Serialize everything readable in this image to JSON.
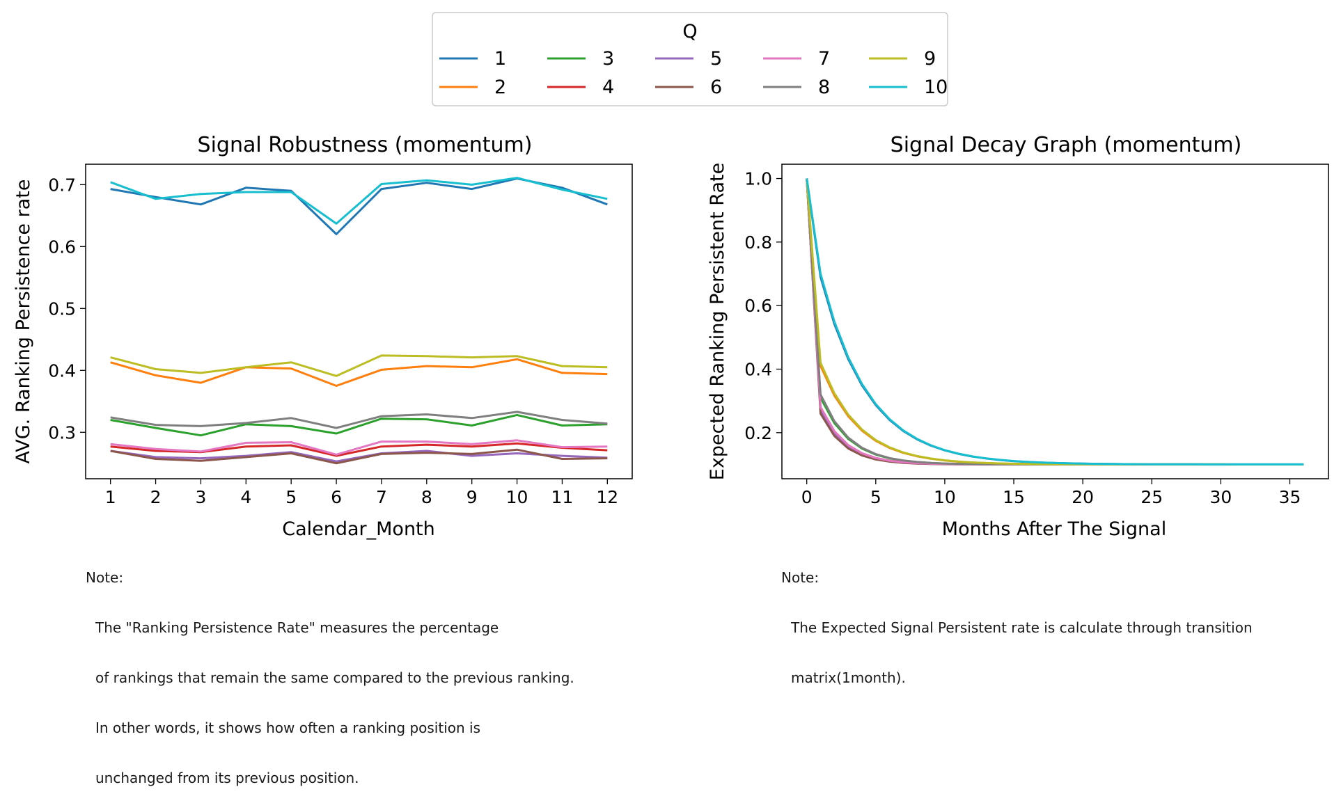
{
  "legend": {
    "title": "Q",
    "entries": [
      "1",
      "2",
      "3",
      "4",
      "5",
      "6",
      "7",
      "8",
      "9",
      "10"
    ]
  },
  "colors": [
    "#1f77b4",
    "#ff7f0e",
    "#2ca02c",
    "#d62728",
    "#9467bd",
    "#8c564b",
    "#e377c2",
    "#7f7f7f",
    "#bcbd22",
    "#17becf"
  ],
  "chart_data": [
    {
      "type": "line",
      "title": "Signal Robustness (momentum)",
      "xlabel": "Calendar_Month",
      "ylabel": "AVG. Ranking Persistence rate",
      "x": [
        1,
        2,
        3,
        4,
        5,
        6,
        7,
        8,
        9,
        10,
        11,
        12
      ],
      "xticks": [
        1,
        2,
        3,
        4,
        5,
        6,
        7,
        8,
        9,
        10,
        11,
        12
      ],
      "yticks": [
        0.3,
        0.4,
        0.5,
        0.6,
        0.7
      ],
      "xlim": [
        0.45,
        12.55
      ],
      "ylim": [
        0.225,
        0.733
      ],
      "grid": false,
      "series": [
        {
          "name": "1",
          "values": [
            0.693,
            0.68,
            0.668,
            0.695,
            0.69,
            0.62,
            0.693,
            0.703,
            0.693,
            0.71,
            0.695,
            0.668
          ]
        },
        {
          "name": "2",
          "values": [
            0.413,
            0.392,
            0.38,
            0.405,
            0.403,
            0.375,
            0.401,
            0.407,
            0.405,
            0.418,
            0.396,
            0.394
          ]
        },
        {
          "name": "3",
          "values": [
            0.32,
            0.307,
            0.295,
            0.313,
            0.31,
            0.298,
            0.322,
            0.321,
            0.311,
            0.328,
            0.311,
            0.313
          ]
        },
        {
          "name": "4",
          "values": [
            0.277,
            0.27,
            0.268,
            0.277,
            0.279,
            0.262,
            0.277,
            0.28,
            0.277,
            0.282,
            0.275,
            0.271
          ]
        },
        {
          "name": "5",
          "values": [
            0.27,
            0.26,
            0.258,
            0.262,
            0.268,
            0.253,
            0.266,
            0.27,
            0.262,
            0.266,
            0.262,
            0.259
          ]
        },
        {
          "name": "6",
          "values": [
            0.27,
            0.257,
            0.254,
            0.26,
            0.266,
            0.25,
            0.265,
            0.267,
            0.265,
            0.272,
            0.257,
            0.258
          ]
        },
        {
          "name": "7",
          "values": [
            0.281,
            0.273,
            0.269,
            0.283,
            0.284,
            0.264,
            0.285,
            0.285,
            0.281,
            0.287,
            0.276,
            0.277
          ]
        },
        {
          "name": "8",
          "values": [
            0.324,
            0.312,
            0.31,
            0.315,
            0.323,
            0.307,
            0.326,
            0.329,
            0.323,
            0.333,
            0.32,
            0.314
          ]
        },
        {
          "name": "9",
          "values": [
            0.421,
            0.402,
            0.396,
            0.405,
            0.413,
            0.391,
            0.424,
            0.423,
            0.421,
            0.423,
            0.407,
            0.405
          ]
        },
        {
          "name": "10",
          "values": [
            0.704,
            0.677,
            0.685,
            0.688,
            0.688,
            0.637,
            0.701,
            0.707,
            0.7,
            0.711,
            0.692,
            0.677
          ]
        }
      ]
    },
    {
      "type": "line",
      "title": "Signal Decay Graph (momentum)",
      "xlabel": "Months After The Signal",
      "ylabel": "Expected Ranking Persistent Rate",
      "x": [
        0,
        1,
        2,
        3,
        4,
        5,
        6,
        7,
        8,
        9,
        10,
        11,
        12,
        13,
        14,
        15,
        16,
        17,
        18,
        19,
        20,
        21,
        22,
        23,
        24,
        25,
        26,
        27,
        28,
        29,
        30,
        31,
        32,
        33,
        34,
        35,
        36
      ],
      "xticks": [
        0,
        5,
        10,
        15,
        20,
        25,
        30,
        35
      ],
      "yticks": [
        0.2,
        0.4,
        0.6,
        0.8,
        1.0
      ],
      "xlim": [
        -1.8,
        37.8
      ],
      "ylim": [
        0.055,
        1.045
      ],
      "grid": false,
      "decay_model": "v(t) = 0.1 + (v1 - 0.1) * r^(t-1) for t>=1, v(0)=1.0",
      "series": [
        {
          "name": "1",
          "v1": 0.69,
          "r": 0.75
        },
        {
          "name": "2",
          "v1": 0.41,
          "r": 0.7
        },
        {
          "name": "3",
          "v1": 0.31,
          "r": 0.62
        },
        {
          "name": "4",
          "v1": 0.28,
          "r": 0.58
        },
        {
          "name": "5",
          "v1": 0.27,
          "r": 0.57
        },
        {
          "name": "6",
          "v1": 0.26,
          "r": 0.56
        },
        {
          "name": "7",
          "v1": 0.28,
          "r": 0.58
        },
        {
          "name": "8",
          "v1": 0.32,
          "r": 0.62
        },
        {
          "name": "9",
          "v1": 0.42,
          "r": 0.7
        },
        {
          "name": "10",
          "v1": 0.7,
          "r": 0.75
        }
      ]
    }
  ],
  "notes": [
    {
      "head": "Note:",
      "lines": [
        "The \"Ranking Persistence Rate\" measures the percentage",
        "of rankings that remain the same compared to the previous ranking.",
        "In other words, it shows how often a ranking position is",
        "unchanged from its previous position."
      ]
    },
    {
      "head": "Note:",
      "lines": [
        "The Expected Signal Persistent rate is calculate through transition",
        "matrix(1month)."
      ]
    }
  ]
}
